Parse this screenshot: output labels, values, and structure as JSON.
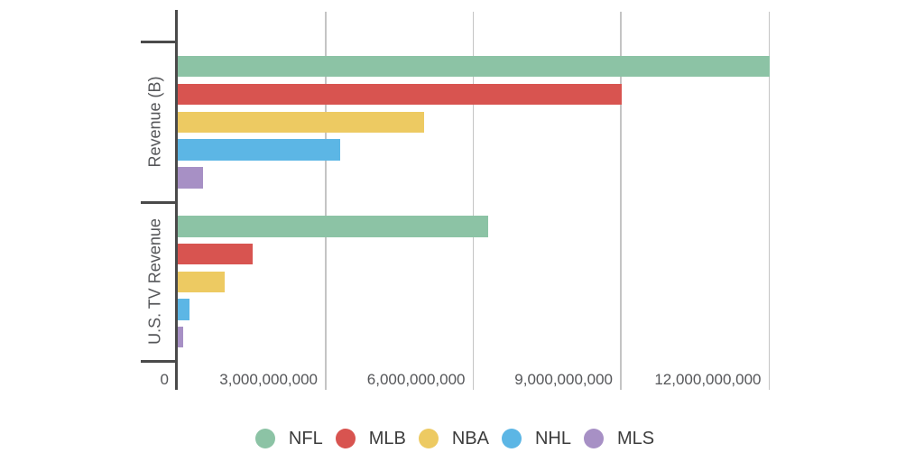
{
  "chart_data": {
    "type": "bar",
    "orientation": "horizontal",
    "categories": [
      "Revenue (B)",
      "U.S. TV Revenue"
    ],
    "series": [
      {
        "name": "NFL",
        "color": "#8cc3a5",
        "values": [
          12000000000,
          6300000000
        ]
      },
      {
        "name": "MLB",
        "color": "#d85450",
        "values": [
          9000000000,
          1520000000
        ]
      },
      {
        "name": "NBA",
        "color": "#edca62",
        "values": [
          5000000000,
          960000000
        ]
      },
      {
        "name": "NHL",
        "color": "#5cb6e5",
        "values": [
          3300000000,
          230000000
        ]
      },
      {
        "name": "MLS",
        "color": "#a790c5",
        "values": [
          510000000,
          115000000
        ]
      }
    ],
    "x_axis": {
      "min": 0,
      "max": 12000000000,
      "tick_values": [
        0,
        3000000000,
        6000000000,
        9000000000,
        12000000000
      ],
      "tick_labels": [
        "0",
        "3,000,000,000",
        "6,000,000,000",
        "9,000,000,000",
        "12,000,000,000"
      ],
      "grid": true
    },
    "legend": {
      "position": "bottom",
      "labels": [
        "NFL",
        "MLB",
        "NBA",
        "NHL",
        "MLS"
      ]
    }
  },
  "colors": {
    "axis": "#4a4a4a",
    "gridline": "#c4c4c4",
    "tick_label": "#555659",
    "legend_label": "#3c3c3c",
    "background": "#ffffff"
  }
}
